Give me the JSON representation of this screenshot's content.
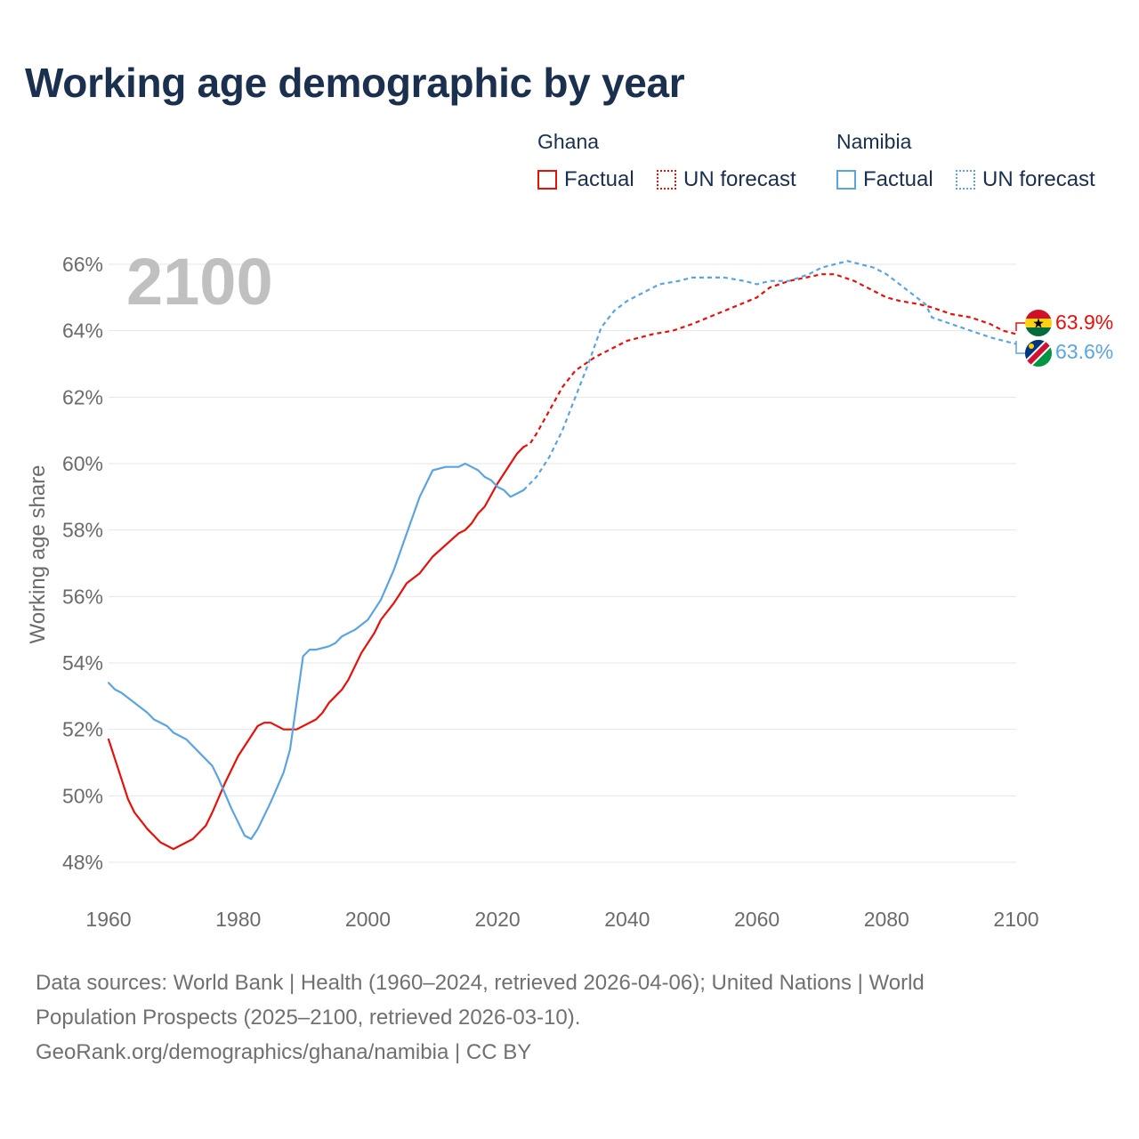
{
  "title": "Working age demographic by year",
  "legend": {
    "ghana": {
      "name": "Ghana",
      "factual": "Factual",
      "forecast": "UN forecast",
      "color": "#e3120b"
    },
    "namibia": {
      "name": "Namibia",
      "factual": "Factual",
      "forecast": "UN forecast",
      "color": "#5ca4e0"
    }
  },
  "year_watermark": "2100",
  "end_labels": {
    "ghana": "63.9%",
    "namibia": "63.6%"
  },
  "footer": {
    "line1": "Data sources: World Bank | Health (1960–2024, retrieved 2026-04-06); United Nations | World",
    "line2": "Population Prospects (2025–2100, retrieved 2026-03-10).",
    "line3": "GeoRank.org/demographics/ghana/namibia | CC BY"
  },
  "chart_data": {
    "type": "line",
    "title": "Working age demographic by year",
    "xlabel": "",
    "ylabel": "Working age share",
    "xlim": [
      1960,
      2100
    ],
    "ylim": [
      47.5,
      66.5
    ],
    "xticks": [
      1960,
      1980,
      2000,
      2020,
      2040,
      2060,
      2080,
      2100
    ],
    "xtick_labels": [
      "1960",
      "1980",
      "2000",
      "2020",
      "2040",
      "2060",
      "2080",
      "2100"
    ],
    "yticks": [
      48,
      50,
      52,
      54,
      56,
      58,
      60,
      62,
      64,
      66
    ],
    "ytick_labels": [
      "48%",
      "50%",
      "52%",
      "54%",
      "56%",
      "58%",
      "60%",
      "62%",
      "64%",
      "66%"
    ],
    "grid": true,
    "series": [
      {
        "name": "Ghana",
        "kind": "Factual",
        "color": "#e3120b",
        "x": [
          1960,
          1962,
          1963,
          1964,
          1966,
          1968,
          1970,
          1973,
          1975,
          1976,
          1978,
          1980,
          1982,
          1983,
          1984,
          1985,
          1987,
          1989,
          1992,
          1993,
          1994,
          1996,
          1997,
          1999,
          2001,
          2002,
          2004,
          2005,
          2006,
          2008,
          2010,
          2014,
          2015,
          2016,
          2017,
          2018,
          2020,
          2022,
          2023,
          2024
        ],
        "y": [
          51.7,
          50.5,
          49.9,
          49.5,
          49.0,
          48.6,
          48.4,
          48.7,
          49.1,
          49.5,
          50.4,
          51.2,
          51.8,
          52.1,
          52.2,
          52.2,
          52.0,
          52.0,
          52.3,
          52.5,
          52.8,
          53.2,
          53.5,
          54.3,
          54.9,
          55.3,
          55.8,
          56.1,
          56.4,
          56.7,
          57.2,
          57.9,
          58.0,
          58.2,
          58.5,
          58.7,
          59.4,
          60.0,
          60.3,
          60.5
        ]
      },
      {
        "name": "Ghana",
        "kind": "UN forecast",
        "color": "#e3120b",
        "x": [
          2024,
          2025,
          2026,
          2028,
          2030,
          2032,
          2035,
          2040,
          2044,
          2047,
          2050,
          2055,
          2060,
          2062,
          2065,
          2070,
          2072,
          2075,
          2078,
          2080,
          2082,
          2085,
          2087,
          2090,
          2093,
          2096,
          2098,
          2100
        ],
        "y": [
          60.5,
          60.6,
          60.9,
          61.6,
          62.3,
          62.8,
          63.2,
          63.7,
          63.9,
          64.0,
          64.2,
          64.6,
          65.0,
          65.3,
          65.5,
          65.7,
          65.7,
          65.5,
          65.2,
          65.0,
          64.9,
          64.8,
          64.7,
          64.5,
          64.4,
          64.2,
          64.0,
          63.9
        ]
      },
      {
        "name": "Namibia",
        "kind": "Factual",
        "color": "#5ca4e0",
        "x": [
          1960,
          1961,
          1962,
          1964,
          1966,
          1967,
          1969,
          1970,
          1972,
          1974,
          1976,
          1977,
          1979,
          1980,
          1981,
          1982,
          1983,
          1985,
          1987,
          1988,
          1989,
          1990,
          1991,
          1992,
          1994,
          1995,
          1996,
          1998,
          2000,
          2001,
          2002,
          2004,
          2006,
          2008,
          2009,
          2010,
          2012,
          2014,
          2015,
          2016,
          2017,
          2018,
          2019,
          2020,
          2021,
          2022,
          2023,
          2024
        ],
        "y": [
          53.4,
          53.2,
          53.1,
          52.8,
          52.5,
          52.3,
          52.1,
          51.9,
          51.7,
          51.3,
          50.9,
          50.5,
          49.6,
          49.2,
          48.8,
          48.7,
          49.0,
          49.8,
          50.7,
          51.4,
          52.8,
          54.2,
          54.4,
          54.4,
          54.5,
          54.6,
          54.8,
          55.0,
          55.3,
          55.6,
          55.9,
          56.8,
          57.9,
          59.0,
          59.4,
          59.8,
          59.9,
          59.9,
          60.0,
          59.9,
          59.8,
          59.6,
          59.5,
          59.3,
          59.2,
          59.0,
          59.1,
          59.2
        ]
      },
      {
        "name": "Namibia",
        "kind": "UN forecast",
        "color": "#5ca4e0",
        "x": [
          2024,
          2025,
          2026,
          2028,
          2030,
          2032,
          2034,
          2036,
          2038,
          2040,
          2042,
          2045,
          2048,
          2050,
          2052,
          2055,
          2058,
          2060,
          2062,
          2065,
          2068,
          2070,
          2072,
          2074,
          2076,
          2078,
          2080,
          2082,
          2084,
          2086,
          2087,
          2090,
          2093,
          2096,
          2098,
          2100
        ],
        "y": [
          59.2,
          59.4,
          59.6,
          60.2,
          61.0,
          62.0,
          63.0,
          64.1,
          64.6,
          64.9,
          65.1,
          65.4,
          65.5,
          65.6,
          65.6,
          65.6,
          65.5,
          65.4,
          65.5,
          65.5,
          65.7,
          65.9,
          66.0,
          66.1,
          66.0,
          65.9,
          65.7,
          65.4,
          65.1,
          64.8,
          64.4,
          64.2,
          64.0,
          63.8,
          63.7,
          63.6
        ]
      }
    ]
  }
}
